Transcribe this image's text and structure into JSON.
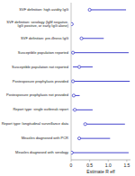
{
  "chart_data": {
    "type": "forest",
    "orientation": "horizontal",
    "categories": [
      "SVF definition: high avidity IgG",
      "SVF definition: serology (IgM negative,\nIgG positive, or early IgG alone)",
      "SVF definition: pre-illness IgG",
      "Susceptible population reported",
      "Susceptible population not reported",
      "Postexposure prophylaxis provided",
      "Postexposure prophylaxis not provided",
      "Report type: single outbreak report",
      "Report type: longitudinal surveillance data",
      "Measles diagnosed with PCR",
      "Measles diagnosed with serology"
    ],
    "values": [
      0.5,
      0.02,
      0.28,
      0.05,
      0.22,
      0.05,
      0.07,
      0.1,
      0.38,
      0.22,
      0.02
    ],
    "ci_low": [
      0.5,
      0.02,
      0.28,
      0.05,
      0.05,
      0.05,
      0.03,
      0.04,
      0.38,
      0.22,
      0.02
    ],
    "ci_high": [
      1.48,
      0.02,
      0.88,
      1.55,
      0.58,
      1.58,
      0.23,
      0.58,
      1.45,
      1.05,
      1.55
    ],
    "xlim": [
      0,
      1.6
    ],
    "xticks": [
      0,
      0.5,
      {
        "value": 1.0,
        "label": "1.0"
      },
      1.5
    ],
    "xlabel": "Estimate R eff",
    "color": "#4444cc",
    "marker": "circle"
  }
}
